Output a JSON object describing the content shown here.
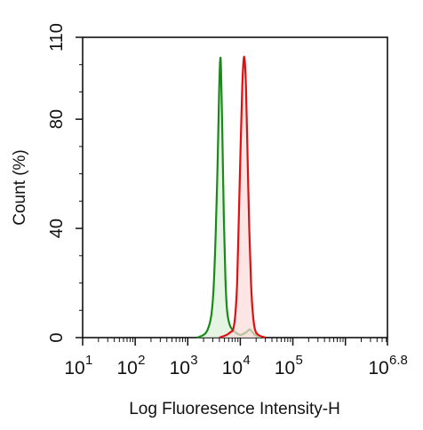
{
  "chart_data": {
    "type": "area",
    "title": "",
    "xlabel": "Log Fluoresence Intensity-H",
    "ylabel": "Count  (%)",
    "x_scale": "log",
    "xlim": [
      10,
      6309573
    ],
    "ylim": [
      0,
      110
    ],
    "grid": false,
    "legend": "none",
    "x_ticks": [
      {
        "value": 10,
        "base": "10",
        "exp": "1"
      },
      {
        "value": 100,
        "base": "10",
        "exp": "2"
      },
      {
        "value": 1000,
        "base": "10",
        "exp": "3"
      },
      {
        "value": 10000,
        "base": "10",
        "exp": "4"
      },
      {
        "value": 100000,
        "base": "10",
        "exp": "5"
      },
      {
        "value": 6309573,
        "base": "10",
        "exp": "6.8"
      }
    ],
    "y_ticks": [
      {
        "value": 0,
        "label": "0"
      },
      {
        "value": 40,
        "label": "40"
      },
      {
        "value": 80,
        "label": "80"
      },
      {
        "value": 110,
        "label": "110"
      }
    ],
    "series": [
      {
        "color": "#1a8a1a",
        "fill": "#dcefd8",
        "points": [
          [
            1500,
            0
          ],
          [
            2000,
            1
          ],
          [
            2400,
            3
          ],
          [
            2800,
            8
          ],
          [
            3100,
            18
          ],
          [
            3400,
            38
          ],
          [
            3700,
            64
          ],
          [
            3950,
            90
          ],
          [
            4150,
            102
          ],
          [
            4300,
            98
          ],
          [
            4550,
            75
          ],
          [
            4850,
            45
          ],
          [
            5200,
            22
          ],
          [
            5600,
            10
          ],
          [
            6200,
            5
          ],
          [
            7000,
            3
          ],
          [
            8000,
            2
          ],
          [
            10000,
            1
          ],
          [
            13000,
            2
          ],
          [
            15000,
            3
          ],
          [
            17000,
            2
          ],
          [
            19000,
            1
          ],
          [
            24000,
            0
          ]
        ]
      },
      {
        "color": "#dd1111",
        "fill": "#f9dada",
        "points": [
          [
            4000,
            0
          ],
          [
            5500,
            1
          ],
          [
            6500,
            2
          ],
          [
            7300,
            3
          ],
          [
            8000,
            8
          ],
          [
            8700,
            20
          ],
          [
            9400,
            45
          ],
          [
            10200,
            72
          ],
          [
            10900,
            92
          ],
          [
            11600,
            102
          ],
          [
            12200,
            101
          ],
          [
            12900,
            90
          ],
          [
            13800,
            65
          ],
          [
            14800,
            40
          ],
          [
            16000,
            20
          ],
          [
            17300,
            9
          ],
          [
            19000,
            3
          ],
          [
            22000,
            1
          ],
          [
            30000,
            0
          ]
        ]
      }
    ]
  }
}
